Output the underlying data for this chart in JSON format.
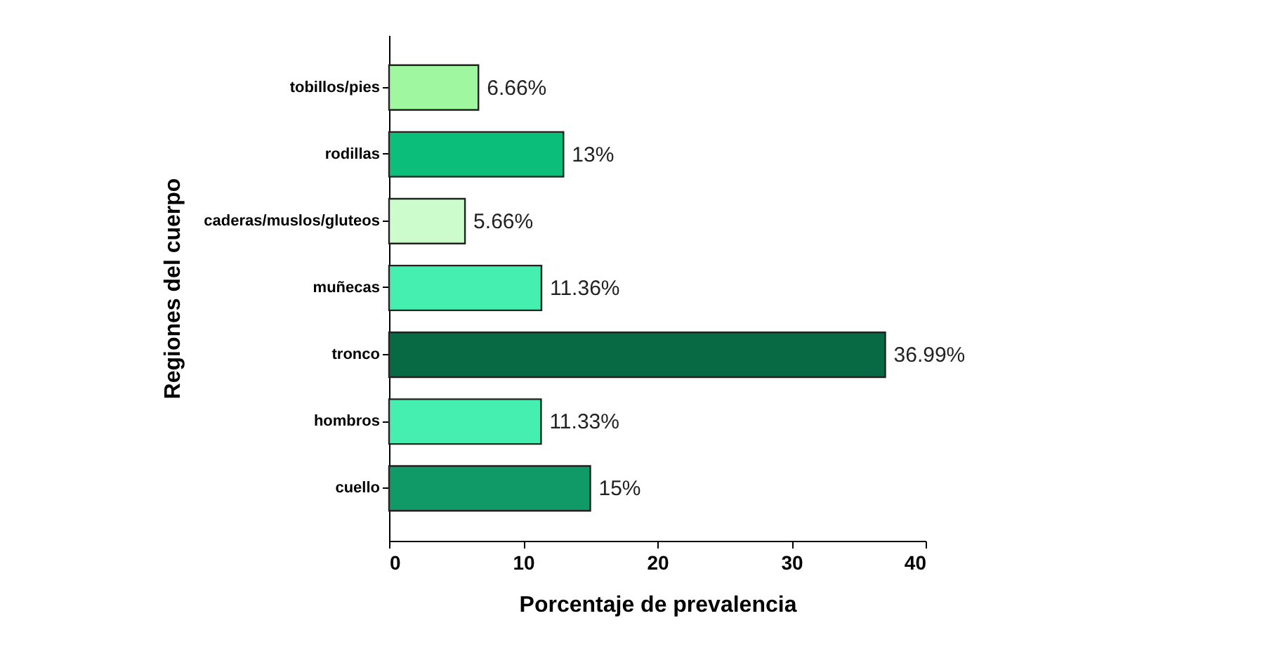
{
  "chart_data": {
    "type": "bar",
    "orientation": "horizontal",
    "xlabel": "Porcentaje de prevalencia",
    "ylabel": "Regiones del cuerpo",
    "categories": [
      "tobillos/pies",
      "rodillas",
      "caderas/muslos/gluteos",
      "muñecas",
      "tronco",
      "hombros",
      "cuello"
    ],
    "values": [
      6.66,
      13,
      5.66,
      11.36,
      36.99,
      11.33,
      15
    ],
    "value_labels": [
      "6.66%",
      "13%",
      "5.66%",
      "11.36%",
      "36.99%",
      "11.33%",
      "15%"
    ],
    "colors": [
      "#9ff89f",
      "#0bbf7a",
      "#ccfccc",
      "#45efb0",
      "#076a45",
      "#45efb0",
      "#0f9a68"
    ],
    "xlim": [
      0,
      40
    ],
    "xticks": [
      0,
      10,
      20,
      30,
      40
    ]
  }
}
